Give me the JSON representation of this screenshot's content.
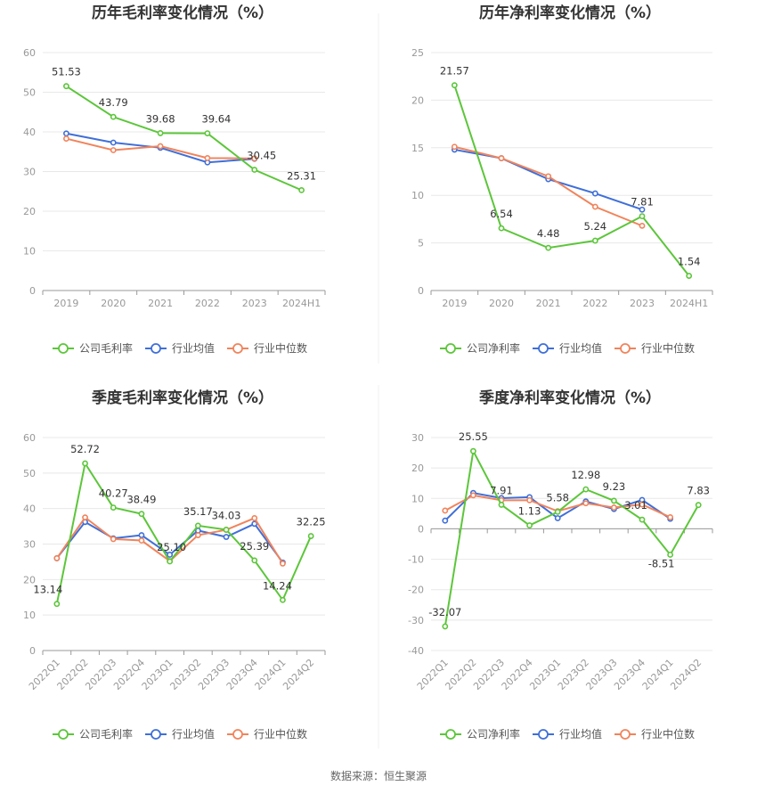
{
  "source": "数据来源：恒生聚源",
  "legend_common": [
    "行业均值",
    "行业中位数"
  ],
  "colors": {
    "company": "#5cc63a",
    "avg": "#3f6fd8",
    "median": "#f0845c",
    "grid": "#e8e8e8",
    "axis": "#999999",
    "label": "#333333",
    "tick": "#999999"
  },
  "chart_data": [
    {
      "type": "line",
      "title": "历年毛利率变化情况（%）",
      "categories": [
        "2019",
        "2020",
        "2021",
        "2022",
        "2023",
        "2024H1"
      ],
      "ylim": [
        0,
        60
      ],
      "yticks": [
        0,
        10,
        20,
        30,
        40,
        50,
        60
      ],
      "legend": [
        "公司毛利率",
        "行业均值",
        "行业中位数"
      ],
      "legend_position": "bottom",
      "grid": true,
      "series": [
        {
          "name": "公司毛利率",
          "values": [
            51.53,
            43.79,
            39.68,
            39.64,
            30.45,
            25.31
          ],
          "labels": [
            "51.53",
            "43.79",
            "39.68",
            "39.64",
            "30.45",
            "25.31"
          ]
        },
        {
          "name": "行业均值",
          "values": [
            39.6,
            37.3,
            36.0,
            32.3,
            33.2,
            null
          ]
        },
        {
          "name": "行业中位数",
          "values": [
            38.3,
            35.4,
            36.4,
            33.4,
            33.3,
            null
          ]
        }
      ]
    },
    {
      "type": "line",
      "title": "历年净利率变化情况（%）",
      "categories": [
        "2019",
        "2020",
        "2021",
        "2022",
        "2023",
        "2024H1"
      ],
      "ylim": [
        0,
        25
      ],
      "yticks": [
        0,
        5,
        10,
        15,
        20,
        25
      ],
      "legend": [
        "公司净利率",
        "行业均值",
        "行业中位数"
      ],
      "legend_position": "bottom",
      "grid": true,
      "series": [
        {
          "name": "公司净利率",
          "values": [
            21.57,
            6.54,
            4.48,
            5.24,
            7.81,
            1.54
          ],
          "labels": [
            "21.57",
            "6.54",
            "4.48",
            "5.24",
            "7.81",
            "1.54"
          ]
        },
        {
          "name": "行业均值",
          "values": [
            14.8,
            13.9,
            11.7,
            10.2,
            8.5,
            null
          ]
        },
        {
          "name": "行业中位数",
          "values": [
            15.1,
            13.9,
            12.0,
            8.8,
            6.8,
            null
          ]
        }
      ]
    },
    {
      "type": "line",
      "title": "季度毛利率变化情况（%）",
      "categories": [
        "2022Q1",
        "2022Q2",
        "2022Q3",
        "2022Q4",
        "2023Q1",
        "2023Q2",
        "2023Q3",
        "2023Q4",
        "2024Q1",
        "2024Q2"
      ],
      "ylim": [
        0,
        60
      ],
      "yticks": [
        0,
        10,
        20,
        30,
        40,
        50,
        60
      ],
      "legend": [
        "公司毛利率",
        "行业均值",
        "行业中位数"
      ],
      "legend_position": "bottom",
      "grid": true,
      "series": [
        {
          "name": "公司毛利率",
          "values": [
            13.14,
            52.72,
            40.27,
            38.49,
            25.1,
            35.17,
            34.03,
            25.39,
            14.24,
            32.25
          ],
          "labels": [
            "13.14",
            "52.72",
            "40.27",
            "38.49",
            "25.10",
            "35.17",
            "34.03",
            "25.39",
            "14.24",
            "32.25"
          ]
        },
        {
          "name": "行业均值",
          "values": [
            26.0,
            36.2,
            31.6,
            32.5,
            27.0,
            33.8,
            32.0,
            35.7,
            24.8,
            null
          ]
        },
        {
          "name": "行业中位数",
          "values": [
            26.0,
            37.5,
            31.4,
            31.0,
            25.2,
            32.5,
            34.0,
            37.3,
            24.5,
            null
          ]
        }
      ]
    },
    {
      "type": "line",
      "title": "季度净利率变化情况（%）",
      "categories": [
        "2022Q1",
        "2022Q2",
        "2022Q3",
        "2022Q4",
        "2023Q1",
        "2023Q2",
        "2023Q3",
        "2023Q4",
        "2024Q1",
        "2024Q2"
      ],
      "ylim": [
        -40,
        30
      ],
      "yticks": [
        -40,
        -30,
        -20,
        -10,
        0,
        10,
        20,
        30
      ],
      "legend": [
        "公司净利率",
        "行业均值",
        "行业中位数"
      ],
      "legend_position": "bottom",
      "grid": true,
      "series": [
        {
          "name": "公司净利率",
          "values": [
            -32.07,
            25.55,
            7.91,
            1.13,
            5.58,
            12.98,
            9.23,
            3.01,
            -8.51,
            7.83
          ],
          "labels": [
            "-32.07",
            "25.55",
            "7.91",
            "1.13",
            "5.58",
            "12.98",
            "9.23",
            "3.01",
            "-8.51",
            "7.83"
          ]
        },
        {
          "name": "行业均值",
          "values": [
            2.7,
            11.8,
            10.1,
            10.4,
            3.5,
            9.0,
            6.5,
            9.5,
            3.3,
            null
          ]
        },
        {
          "name": "行业中位数",
          "values": [
            6.0,
            11.0,
            9.4,
            9.4,
            5.8,
            8.4,
            7.0,
            8.0,
            3.8,
            null
          ]
        }
      ]
    }
  ]
}
